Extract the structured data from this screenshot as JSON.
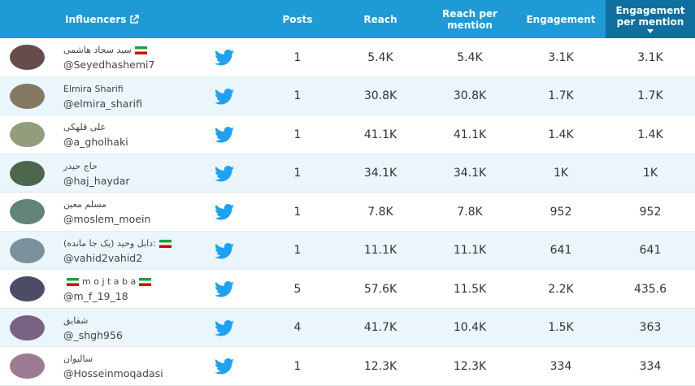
{
  "table": {
    "headers": [
      "Influencers",
      "Posts",
      "Reach",
      "Reach per mention",
      "Engagement",
      "Engagement per mention"
    ],
    "rows": [
      {
        "name": "سید سجاد هاشمی",
        "handle": "@Seyedhashemi7",
        "posts": "1",
        "reach": "5.4K",
        "reach_per_mention": "5.4K",
        "engagement": "3.1K",
        "engagement_per_mention": "3.1K"
      },
      {
        "name": "Elmira Sharifi",
        "handle": "@elmira_sharifi",
        "posts": "1",
        "reach": "30.8K",
        "reach_per_mention": "30.8K",
        "engagement": "1.7K",
        "engagement_per_mention": "1.7K"
      },
      {
        "name": "علی قلهکی",
        "handle": "@a_gholhaki",
        "posts": "1",
        "reach": "41.1K",
        "reach_per_mention": "41.1K",
        "engagement": "1.4K",
        "engagement_per_mention": "1.4K"
      },
      {
        "name": "حاج حیدر",
        "handle": "@haj_haydar",
        "posts": "1",
        "reach": "34.1K",
        "reach_per_mention": "34.1K",
        "engagement": "1K",
        "engagement_per_mention": "1K"
      },
      {
        "name": "مسلم معین",
        "handle": "@moslem_moein",
        "posts": "1",
        "reach": "7.8K",
        "reach_per_mention": "7.8K",
        "engagement": "952",
        "engagement_per_mention": "952"
      },
      {
        "name": "دابل وحید (یک جا مانده):",
        "handle": "@vahid2vahid2",
        "posts": "1",
        "reach": "11.1K",
        "reach_per_mention": "11.1K",
        "engagement": "641",
        "engagement_per_mention": "641"
      },
      {
        "name": "m o j t a b a",
        "handle": "@m_f_19_18",
        "posts": "5",
        "reach": "57.6K",
        "reach_per_mention": "11.5K",
        "engagement": "2.2K",
        "engagement_per_mention": "435.6"
      },
      {
        "name": "شقایق",
        "handle": "@_shgh956",
        "posts": "4",
        "reach": "41.7K",
        "reach_per_mention": "10.4K",
        "engagement": "1.5K",
        "engagement_per_mention": "363"
      },
      {
        "name": "سالیوان",
        "handle": "@Hosseinmoqadasi",
        "posts": "1",
        "reach": "12.3K",
        "reach_per_mention": "12.3K",
        "engagement": "334",
        "engagement_per_mention": "334"
      }
    ]
  }
}
